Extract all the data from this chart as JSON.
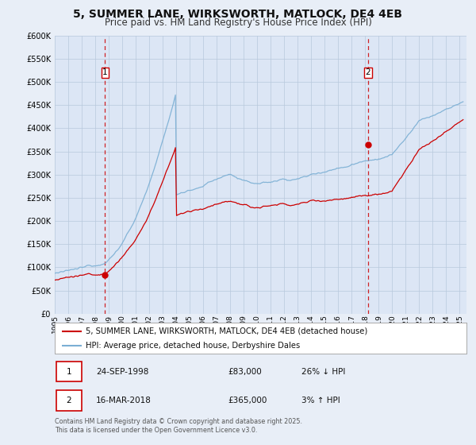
{
  "title": "5, SUMMER LANE, WIRKSWORTH, MATLOCK, DE4 4EB",
  "subtitle": "Price paid vs. HM Land Registry's House Price Index (HPI)",
  "title_fontsize": 10,
  "subtitle_fontsize": 8.5,
  "yticks": [
    0,
    50000,
    100000,
    150000,
    200000,
    250000,
    300000,
    350000,
    400000,
    450000,
    500000,
    550000,
    600000
  ],
  "ytick_labels": [
    "£0",
    "£50K",
    "£100K",
    "£150K",
    "£200K",
    "£250K",
    "£300K",
    "£350K",
    "£400K",
    "£450K",
    "£500K",
    "£550K",
    "£600K"
  ],
  "hpi_color": "#7bafd4",
  "price_color": "#cc0000",
  "vline_color": "#cc0000",
  "purchase1_year": 1998.73,
  "purchase1_price": 83000,
  "purchase2_year": 2018.21,
  "purchase2_price": 365000,
  "legend_label_price": "5, SUMMER LANE, WIRKSWORTH, MATLOCK, DE4 4EB (detached house)",
  "legend_label_hpi": "HPI: Average price, detached house, Derbyshire Dales",
  "footer": "Contains HM Land Registry data © Crown copyright and database right 2025.\nThis data is licensed under the Open Government Licence v3.0.",
  "background_color": "#e8eef7",
  "plot_background": "#dce6f5",
  "grid_color": "#b8c8dc"
}
